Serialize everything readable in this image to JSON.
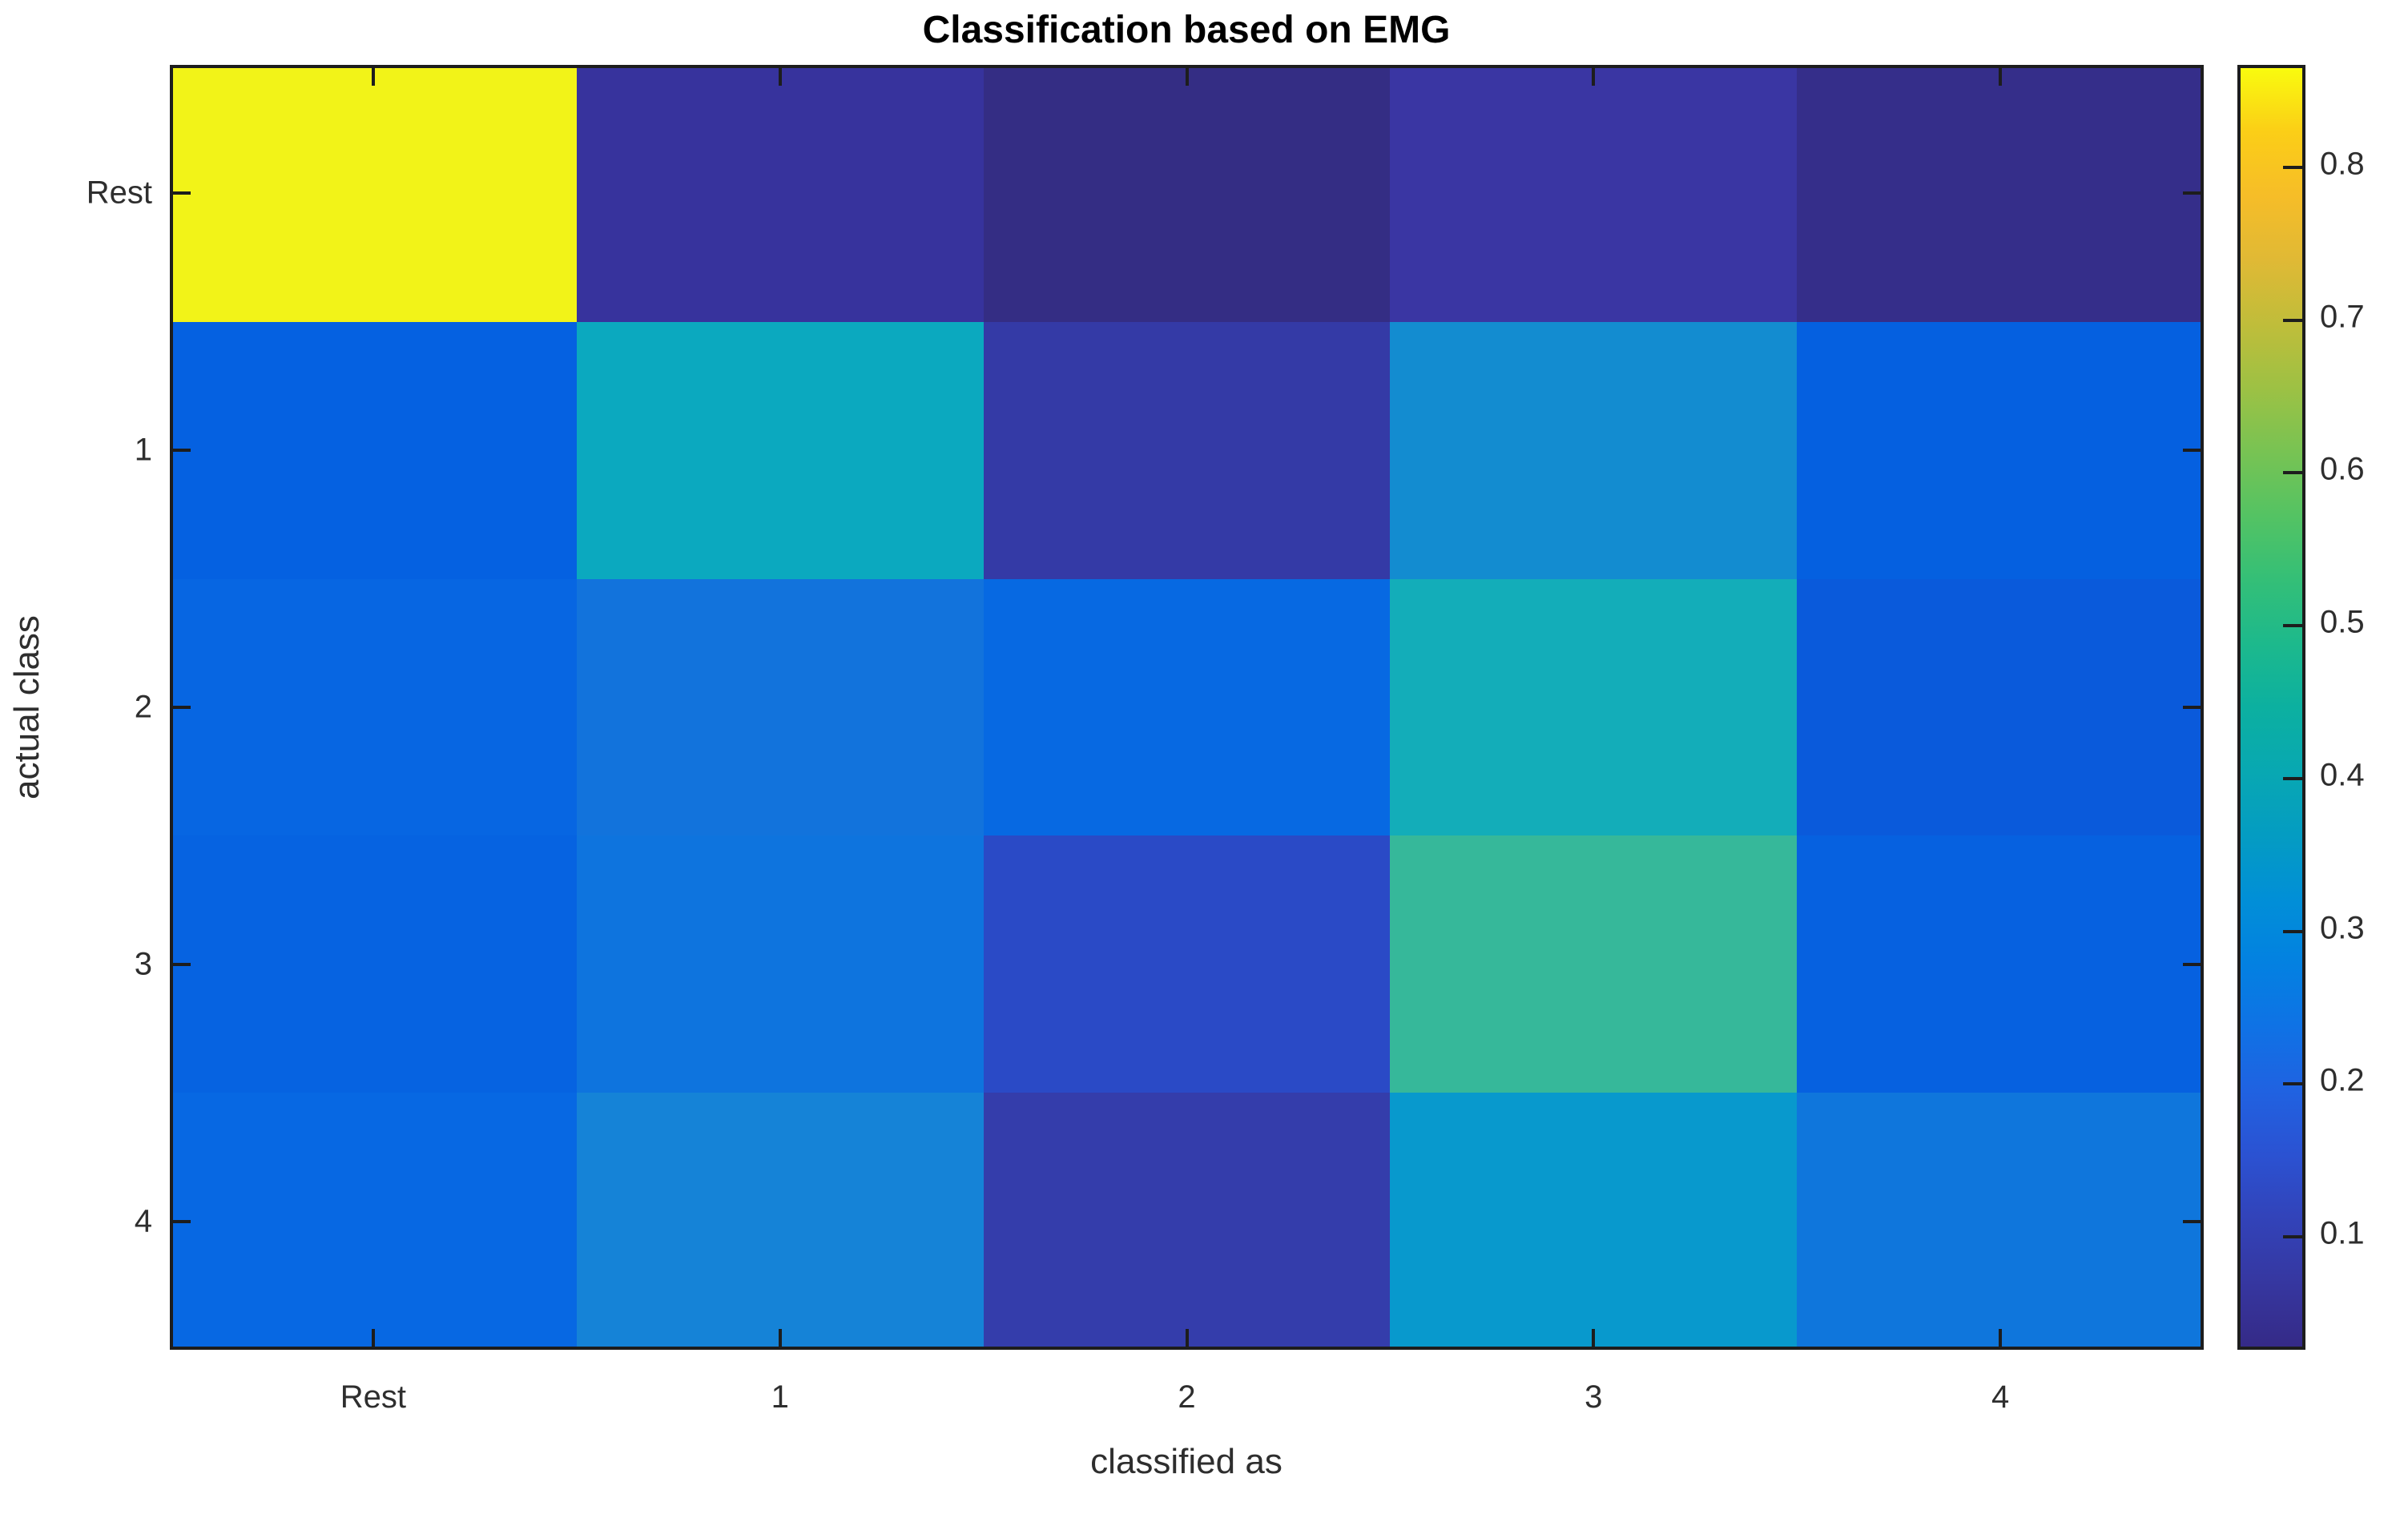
{
  "title": "Classification based on EMG",
  "axes": {
    "x_label": "classified as",
    "y_label": "actual class",
    "x_ticks": [
      "Rest",
      "1",
      "2",
      "3",
      "4"
    ],
    "y_ticks": [
      "Rest",
      "1",
      "2",
      "3",
      "4"
    ]
  },
  "colorbar": {
    "tick_labels": [
      "0.1",
      "0.2",
      "0.3",
      "0.4",
      "0.5",
      "0.6",
      "0.7",
      "0.8"
    ],
    "tick_values": [
      0.1,
      0.2,
      0.3,
      0.4,
      0.5,
      0.6,
      0.7,
      0.8
    ],
    "vmin": 0.024,
    "vmax": 0.865,
    "gradient_bottom_to_top": [
      "#352a87",
      "#3637a0",
      "#3243b9",
      "#2b52d2",
      "#2062e1",
      "#0f72e5",
      "#0381e1",
      "#018fd7",
      "#049cc2",
      "#08a8b2",
      "#0cb0a0",
      "#1db98c",
      "#34bf77",
      "#54c363",
      "#78c353",
      "#9dc144",
      "#c0bd3a",
      "#e0b935",
      "#f6bd28",
      "#fbce17",
      "#f9fb0e"
    ]
  },
  "chart_data": {
    "type": "heatmap",
    "title": "Classification based on EMG",
    "xlabel": "classified as",
    "ylabel": "actual class",
    "rows": [
      "Rest",
      "1",
      "2",
      "3",
      "4"
    ],
    "columns": [
      "Rest",
      "1",
      "2",
      "3",
      "4"
    ],
    "values": [
      [
        0.86,
        0.07,
        0.03,
        0.08,
        0.04
      ],
      [
        0.22,
        0.37,
        0.07,
        0.31,
        0.21
      ],
      [
        0.23,
        0.24,
        0.23,
        0.41,
        0.2
      ],
      [
        0.22,
        0.25,
        0.13,
        0.49,
        0.22
      ],
      [
        0.23,
        0.29,
        0.08,
        0.35,
        0.25
      ]
    ],
    "cell_colors": [
      [
        "#F2F318",
        "#37339D",
        "#342D84",
        "#3A36A3",
        "#352E8A"
      ],
      [
        "#0561E1",
        "#0BA9BF",
        "#343AA6",
        "#138CD0",
        "#0560E0"
      ],
      [
        "#0766E2",
        "#1273DC",
        "#0769E2",
        "#13ADB9",
        "#0A5ADB"
      ],
      [
        "#0663E1",
        "#0E74DE",
        "#2A4AC6",
        "#36B89A",
        "#0661E0"
      ],
      [
        "#0768E3",
        "#1583D7",
        "#343DAB",
        "#0899CD",
        "#0F76DC"
      ]
    ],
    "colormap": "parula",
    "color_range": [
      0.024,
      0.865
    ],
    "grid": false,
    "legend_position": "right-colorbar"
  },
  "colors": {
    "axis_line": "#1d1d1d",
    "tick_label": "#2e2e2e",
    "title_color": "#000000",
    "background": "#ffffff"
  }
}
